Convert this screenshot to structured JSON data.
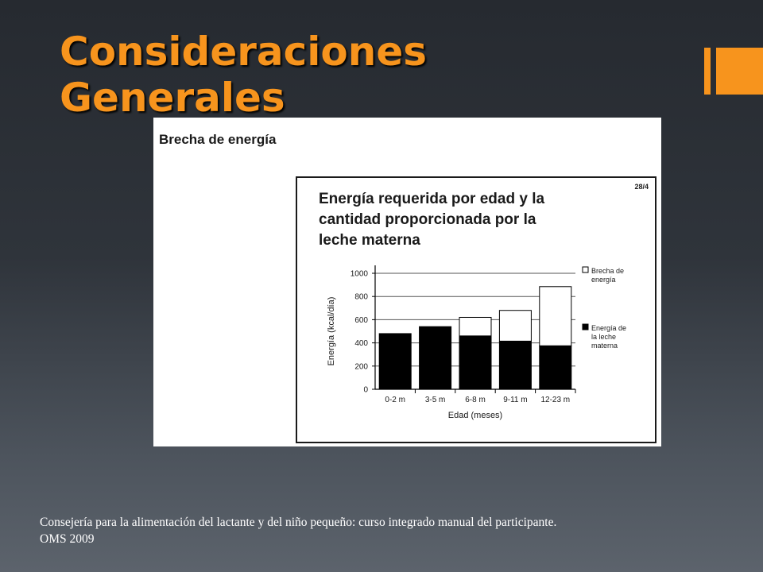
{
  "slide": {
    "title_lines": [
      "Consideraciones",
      "Generales"
    ],
    "footer_lines": [
      "Consejería para la alimentación del lactante y del niño pequeño: curso integrado manual del participante.",
      "OMS 2009"
    ],
    "accent_color": "#f7941d"
  },
  "figure": {
    "heading": "Brecha de energía",
    "page_ref": "28/4"
  },
  "chart_data": {
    "type": "bar",
    "stacked": true,
    "title_lines": [
      "Energía requerida por edad y la",
      "cantidad proporcionada por la",
      "leche materna"
    ],
    "xlabel": "Edad (meses)",
    "ylabel": "Energía (kcal/día)",
    "categories": [
      "0-2 m",
      "3-5 m",
      "6-8 m",
      "9-11 m",
      "12-23 m"
    ],
    "series": [
      {
        "name": "Energía de la leche materna",
        "legend_lines": [
          "Energía de",
          "la leche",
          "materna"
        ],
        "color": "#000000",
        "values": [
          480,
          540,
          460,
          415,
          375
        ]
      },
      {
        "name": "Brecha de energía",
        "legend_lines": [
          "Brecha de",
          "energía"
        ],
        "color": "#ffffff",
        "values": [
          0,
          0,
          160,
          265,
          510
        ]
      }
    ],
    "ylim": [
      0,
      1000
    ],
    "yticks": [
      0,
      200,
      400,
      600,
      800,
      1000
    ],
    "grid": true,
    "legend": "right"
  }
}
